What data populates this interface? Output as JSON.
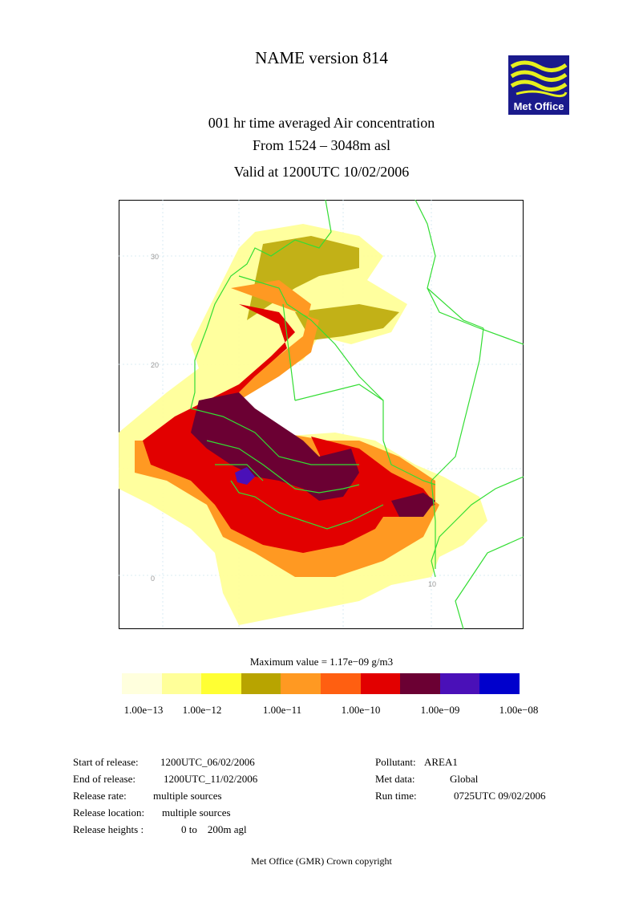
{
  "header": {
    "title": "NAME version 814",
    "field": "001 hr time averaged   Air concentration",
    "levels": "From  1524 –  3048m asl",
    "valid": "Valid at 1200UTC 10/02/2006"
  },
  "logo": {
    "text": "Met Office",
    "bg": "#1a1a8c",
    "wave_color": "#e6f01e"
  },
  "map": {
    "lat_labels": [
      "30",
      "20",
      "0"
    ],
    "lon_labels": [
      "10"
    ],
    "border_color": "#33dd33",
    "plume_levels": [
      "#ffffcc",
      "#ffff99",
      "#ffff33",
      "#b8a400",
      "#ff9922",
      "#ff5f11",
      "#e20000",
      "#6b0033",
      "#4a10b8",
      "#0000cc"
    ]
  },
  "legend": {
    "max_value": "Maximum value = 1.17e−09 g/m3",
    "colors": [
      "#ffffdd",
      "#ffff99",
      "#ffff33",
      "#b8a400",
      "#ff9922",
      "#ff5f11",
      "#e20000",
      "#6b0033",
      "#4a10b8",
      "#0000cc"
    ],
    "ticks": [
      "1.00e−13",
      "1.00e−12",
      "1.00e−11",
      "1.00e−10",
      "1.00e−09",
      "1.00e−08"
    ]
  },
  "info": {
    "start_label": "Start of release:",
    "start_value": "1200UTC_06/02/2006",
    "end_label": "End of release:",
    "end_value": "1200UTC_11/02/2006",
    "rate_label": "Release rate:",
    "rate_value": "multiple sources",
    "location_label": "Release location:",
    "location_value": "multiple sources",
    "heights_label": "Release heights :",
    "heights_value": "0 to    200m agl",
    "pollutant_label": "Pollutant:",
    "pollutant_value": "AREA1",
    "met_label": "Met data:",
    "met_value": "Global",
    "run_label": "Run time:",
    "run_value": "0725UTC 09/02/2006"
  },
  "footer": {
    "copyright": "Met Office (GMR)  Crown copyright"
  }
}
